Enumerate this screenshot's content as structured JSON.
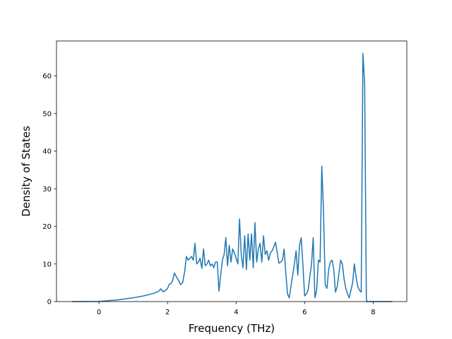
{
  "chart_data": {
    "type": "line",
    "title": "",
    "xlabel": "Frequency (THz)",
    "ylabel": "Density of States",
    "xlim": [
      -1.24,
      8.98
    ],
    "ylim": [
      0,
      69.3
    ],
    "xticks": [
      "0",
      "2",
      "4",
      "6",
      "8"
    ],
    "xtick_values": [
      0,
      2,
      4,
      6,
      8
    ],
    "yticks": [
      "0",
      "10",
      "20",
      "30",
      "40",
      "50",
      "60"
    ],
    "ytick_values": [
      0,
      10,
      20,
      30,
      40,
      50,
      60
    ],
    "grid": false,
    "line_color": "#1f77b4",
    "series": [
      {
        "x": [
          -0.78,
          -0.5,
          0,
          0.5,
          1.0,
          1.3,
          1.6,
          1.75,
          1.8,
          1.87,
          1.95,
          2.0,
          2.05,
          2.1,
          2.15,
          2.2,
          2.28,
          2.33,
          2.38,
          2.44,
          2.5,
          2.55,
          2.6,
          2.65,
          2.7,
          2.75,
          2.8,
          2.85,
          2.9,
          2.95,
          3.0,
          3.05,
          3.1,
          3.15,
          3.2,
          3.25,
          3.3,
          3.35,
          3.4,
          3.45,
          3.5,
          3.55,
          3.6,
          3.65,
          3.7,
          3.75,
          3.8,
          3.85,
          3.9,
          3.95,
          4.0,
          4.05,
          4.1,
          4.15,
          4.2,
          4.25,
          4.3,
          4.35,
          4.4,
          4.45,
          4.5,
          4.55,
          4.6,
          4.65,
          4.7,
          4.75,
          4.8,
          4.85,
          4.9,
          4.95,
          5.0,
          5.05,
          5.1,
          5.15,
          5.2,
          5.25,
          5.3,
          5.35,
          5.4,
          5.45,
          5.5,
          5.55,
          5.6,
          5.65,
          5.7,
          5.75,
          5.8,
          5.85,
          5.9,
          5.95,
          6.0,
          6.05,
          6.1,
          6.15,
          6.2,
          6.25,
          6.3,
          6.35,
          6.4,
          6.45,
          6.5,
          6.55,
          6.6,
          6.65,
          6.7,
          6.75,
          6.8,
          6.85,
          6.9,
          6.95,
          7.0,
          7.05,
          7.1,
          7.15,
          7.2,
          7.25,
          7.3,
          7.35,
          7.4,
          7.45,
          7.5,
          7.55,
          7.6,
          7.65,
          7.7,
          7.75,
          7.8,
          7.81,
          8.2,
          8.55
        ],
        "y": [
          0,
          0,
          0.05,
          0.4,
          1.0,
          1.5,
          2.2,
          2.8,
          3.4,
          2.6,
          3.0,
          3.5,
          4.6,
          4.8,
          5.6,
          7.6,
          6.2,
          5.5,
          4.5,
          5.0,
          8.0,
          12.0,
          11.0,
          11.5,
          12.0,
          11.0,
          15.5,
          10.0,
          10.5,
          11.5,
          8.8,
          14.0,
          9.5,
          10.0,
          11.0,
          9.5,
          10.0,
          9.0,
          10.5,
          10.5,
          2.8,
          7.0,
          11.0,
          12.5,
          17.0,
          9.5,
          15.0,
          10.5,
          14.0,
          13.0,
          11.5,
          10.0,
          22.0,
          12.5,
          9.0,
          17.5,
          8.5,
          18.0,
          11.0,
          18.0,
          9.0,
          21.0,
          10.5,
          14.0,
          15.5,
          10.5,
          17.5,
          12.5,
          13.5,
          11.0,
          13.0,
          13.5,
          14.5,
          15.8,
          13.0,
          10.2,
          10.5,
          11.0,
          14.0,
          7.5,
          2.0,
          1.0,
          4.0,
          7.0,
          10.0,
          13.5,
          7.0,
          15.0,
          17.0,
          9.5,
          1.5,
          2.0,
          3.0,
          6.5,
          10.0,
          17.0,
          1.0,
          3.0,
          11.0,
          10.5,
          36.0,
          24.0,
          4.5,
          3.5,
          8.5,
          10.5,
          11.0,
          8.5,
          2.5,
          4.0,
          7.5,
          11.0,
          10.0,
          6.0,
          3.5,
          2.0,
          1.0,
          3.0,
          5.0,
          10.0,
          6.5,
          4.0,
          3.0,
          2.5,
          66.0,
          58.0,
          1.0,
          0,
          0,
          0
        ]
      }
    ]
  }
}
